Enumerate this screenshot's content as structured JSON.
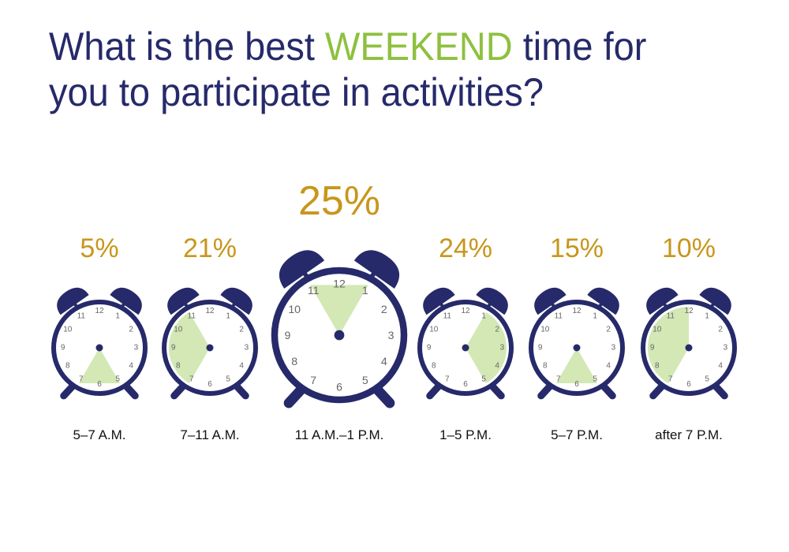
{
  "title": {
    "before": "What is the best ",
    "highlight": "WEEKEND",
    "after": " time for you to participate in activities?"
  },
  "colors": {
    "title": "#262a6a",
    "highlight": "#8ec03f",
    "percent": "#c8961c",
    "clock_body": "#262a6a",
    "slice_fill": "#d3e8b5"
  },
  "clock_numerals": [
    "12",
    "1",
    "2",
    "3",
    "4",
    "5",
    "6",
    "7",
    "8",
    "9",
    "10",
    "11"
  ],
  "chart_data": {
    "type": "pie",
    "categories": [
      "5–7 A.M.",
      "7–11 A.M.",
      "11 A.M.–1 P.M.",
      "1–5 P.M.",
      "5–7 P.M.",
      "after 7 P.M."
    ],
    "values": [
      5,
      21,
      25,
      24,
      15,
      10
    ],
    "value_labels": [
      "5%",
      "21%",
      "25%",
      "24%",
      "15%",
      "10%"
    ],
    "time_ranges": [
      [
        5,
        7
      ],
      [
        7,
        11
      ],
      [
        11,
        13
      ],
      [
        13,
        17
      ],
      [
        17,
        19
      ],
      [
        19,
        24
      ]
    ],
    "highlighted_category": "11 A.M.–1 P.M."
  }
}
